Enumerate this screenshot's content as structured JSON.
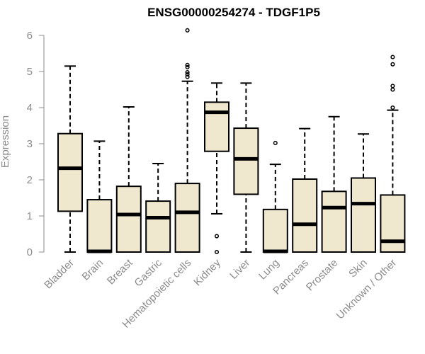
{
  "chart_data": {
    "type": "box",
    "title": "ENSG00000254274 - TDGF1P5",
    "xlabel": "",
    "ylabel": "Expression",
    "ylim": [
      0,
      6.2
    ],
    "yticks": [
      0,
      1,
      2,
      3,
      4,
      5,
      6
    ],
    "grid": false,
    "box_fill": "#efe8cf",
    "box_stroke": "#000000",
    "categories": [
      "Bladder",
      "Brain",
      "Breast",
      "Gastric",
      "Hematopoietic cells",
      "Kidney",
      "Liver",
      "Lung",
      "Pancreas",
      "Prostate",
      "Skin",
      "Unknown / Other"
    ],
    "boxes": [
      {
        "whisker_low": 0,
        "q1": 1.13,
        "median": 2.32,
        "q3": 3.28,
        "whisker_high": 5.15,
        "outliers": []
      },
      {
        "whisker_low": 0,
        "q1": 0,
        "median": 0.02,
        "q3": 1.45,
        "whisker_high": 3.07,
        "outliers": []
      },
      {
        "whisker_low": 0,
        "q1": 0,
        "median": 1.04,
        "q3": 1.82,
        "whisker_high": 4.02,
        "outliers": []
      },
      {
        "whisker_low": 0,
        "q1": 0,
        "median": 0.95,
        "q3": 1.41,
        "whisker_high": 2.45,
        "outliers": []
      },
      {
        "whisker_low": 0,
        "q1": 0,
        "median": 1.1,
        "q3": 1.9,
        "whisker_high": 4.73,
        "outliers": [
          4.85,
          4.92,
          4.98,
          5.12,
          5.18,
          6.14
        ]
      },
      {
        "whisker_low": 1.06,
        "q1": 2.79,
        "median": 3.87,
        "q3": 4.15,
        "whisker_high": 4.68,
        "outliers": [
          0,
          0.44
        ]
      },
      {
        "whisker_low": 0,
        "q1": 1.6,
        "median": 2.58,
        "q3": 3.43,
        "whisker_high": 4.68,
        "outliers": []
      },
      {
        "whisker_low": 0,
        "q1": 0,
        "median": 0.02,
        "q3": 1.18,
        "whisker_high": 2.43,
        "outliers": [
          3.02
        ]
      },
      {
        "whisker_low": 0,
        "q1": 0,
        "median": 0.77,
        "q3": 2.02,
        "whisker_high": 3.42,
        "outliers": []
      },
      {
        "whisker_low": 0,
        "q1": 0,
        "median": 1.23,
        "q3": 1.68,
        "whisker_high": 3.75,
        "outliers": []
      },
      {
        "whisker_low": 0,
        "q1": 0,
        "median": 1.34,
        "q3": 2.05,
        "whisker_high": 3.27,
        "outliers": []
      },
      {
        "whisker_low": 0,
        "q1": 0,
        "median": 0.3,
        "q3": 1.58,
        "whisker_high": 3.93,
        "outliers": [
          4.0,
          4.5,
          4.6,
          5.2,
          5.4
        ]
      }
    ]
  }
}
